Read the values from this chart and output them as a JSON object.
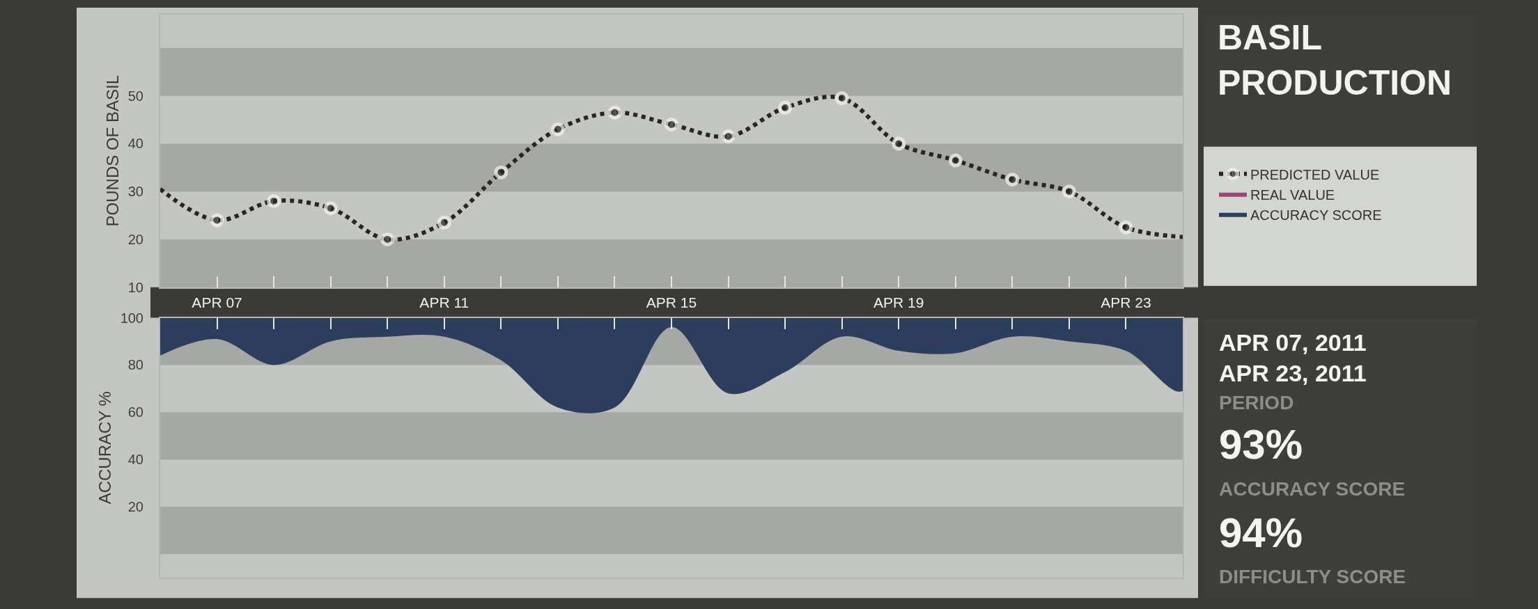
{
  "chart_data": [
    {
      "type": "line",
      "ylabel": "POUNDS OF BASIL",
      "x": [
        "--04-06",
        "--04-07",
        "--04-08",
        "--04-09",
        "--04-10",
        "--04-11",
        "--04-12",
        "--04-13",
        "--04-14",
        "--04-15",
        "--04-16",
        "--04-17",
        "--04-18",
        "--04-19",
        "--04-20",
        "--04-21",
        "--04-22",
        "--04-23",
        "--04-24"
      ],
      "series": [
        {
          "name": "PREDICTED VALUE",
          "color": "#262624",
          "line_style": "dotted",
          "marker": "circle",
          "values": [
            30.5,
            24,
            28,
            26.5,
            20,
            23.5,
            34,
            43,
            46.5,
            44,
            41.5,
            47.5,
            49.5,
            40,
            36.5,
            32.5,
            30,
            22.5,
            20.5
          ]
        },
        {
          "name": "REAL VALUE",
          "type": "area",
          "color": "#9c4577",
          "values": [
            null,
            null,
            null,
            null,
            null,
            null,
            null,
            null,
            null,
            null,
            null,
            null,
            null,
            null,
            null,
            null,
            null,
            null,
            null
          ]
        }
      ],
      "xlim": [
        "--04-06",
        "--04-24"
      ],
      "xticks": [
        {
          "value": "--04-07",
          "label": "APR 07"
        },
        {
          "value": "--04-08",
          "label": null
        },
        {
          "value": "--04-09",
          "label": null
        },
        {
          "value": "--04-10",
          "label": null
        },
        {
          "value": "--04-11",
          "label": "APR 11"
        },
        {
          "value": "--04-12",
          "label": null
        },
        {
          "value": "--04-13",
          "label": null
        },
        {
          "value": "--04-14",
          "label": null
        },
        {
          "value": "--04-15",
          "label": "APR 15"
        },
        {
          "value": "--04-16",
          "label": null
        },
        {
          "value": "--04-17",
          "label": null
        },
        {
          "value": "--04-18",
          "label": null
        },
        {
          "value": "--04-19",
          "label": "APR 19"
        },
        {
          "value": "--04-20",
          "label": null
        },
        {
          "value": "--04-21",
          "label": null
        },
        {
          "value": "--04-22",
          "label": null
        },
        {
          "value": "--04-23",
          "label": "APR 23"
        }
      ],
      "ylim": [
        10,
        67
      ],
      "yticks": [
        10,
        20,
        30,
        40,
        50
      ],
      "bands": [
        {
          "axis": "y",
          "from": 10,
          "to": 20,
          "color": "#a5a8a4"
        },
        {
          "axis": "y",
          "from": 30,
          "to": 40,
          "color": "#a5a8a4"
        },
        {
          "axis": "y",
          "from": 50,
          "to": 60,
          "color": "#a5a8a4"
        }
      ],
      "legend": "right"
    },
    {
      "type": "area",
      "ylabel": "ACCURACY %",
      "x": [
        "--04-06",
        "--04-07",
        "--04-08",
        "--04-09",
        "--04-10",
        "--04-11",
        "--04-12",
        "--04-13",
        "--04-14",
        "--04-15",
        "--04-16",
        "--04-17",
        "--04-18",
        "--04-19",
        "--04-20",
        "--04-21",
        "--04-22",
        "--04-23",
        "--04-24"
      ],
      "series": [
        {
          "name": "ACCURACY SCORE",
          "color": "#2c3e5e",
          "values": [
            84,
            91,
            80,
            90,
            92,
            92,
            82,
            62,
            62,
            96,
            68,
            77,
            92,
            86,
            85,
            92,
            90,
            86,
            69
          ]
        }
      ],
      "xlim": [
        "--04-06",
        "--04-24"
      ],
      "xticks": [
        {
          "value": "--04-07",
          "label": null
        },
        {
          "value": "--04-08",
          "label": null
        },
        {
          "value": "--04-09",
          "label": null
        },
        {
          "value": "--04-10",
          "label": null
        },
        {
          "value": "--04-11",
          "label": null
        },
        {
          "value": "--04-12",
          "label": null
        },
        {
          "value": "--04-13",
          "label": null
        },
        {
          "value": "--04-14",
          "label": null
        },
        {
          "value": "--04-15",
          "label": null
        },
        {
          "value": "--04-16",
          "label": null
        },
        {
          "value": "--04-17",
          "label": null
        },
        {
          "value": "--04-18",
          "label": null
        },
        {
          "value": "--04-19",
          "label": null
        },
        {
          "value": "--04-20",
          "label": null
        },
        {
          "value": "--04-21",
          "label": null
        },
        {
          "value": "--04-22",
          "label": null
        },
        {
          "value": "--04-23",
          "label": null
        }
      ],
      "ylim": [
        -10,
        100
      ],
      "yticks": [
        20,
        40,
        60,
        80,
        100
      ],
      "bands": [
        {
          "axis": "y",
          "from": 0,
          "to": 20,
          "color": "#a5a8a4"
        },
        {
          "axis": "y",
          "from": 40,
          "to": 60,
          "color": "#a5a8a4"
        },
        {
          "axis": "y",
          "from": 80,
          "to": 100,
          "color": "#a5a8a4"
        }
      ],
      "tick_labels": "y",
      "legend": "right"
    },
    {
      "type": "other",
      "title": "BASIL\nPRODUCTION",
      "annotations": [
        "APR 07, 2011\nAPR 23, 2011",
        "PERIOD",
        "93%",
        "ACCURACY SCORE",
        "94%",
        "DIFFICULTY SCORE"
      ]
    }
  ]
}
